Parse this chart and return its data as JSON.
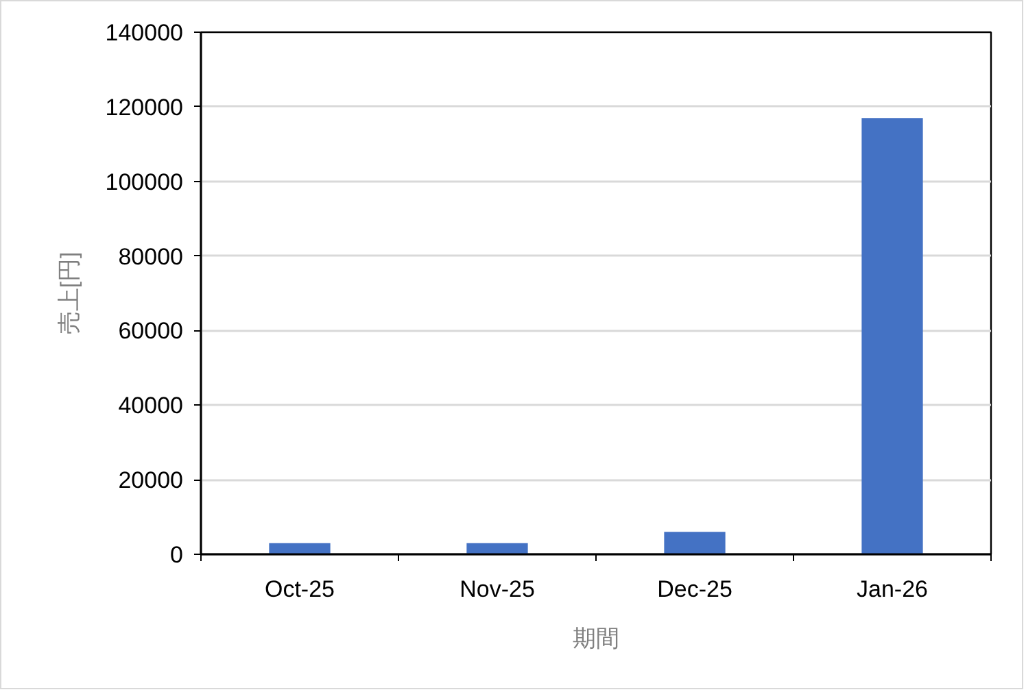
{
  "chart_data": {
    "type": "bar",
    "xlabel": "期間",
    "ylabel": "売上[円]",
    "categories": [
      "Oct-25",
      "Nov-25",
      "Dec-25",
      "Jan-26"
    ],
    "values": [
      3000,
      3000,
      6000,
      117000
    ],
    "color": "#4472c4",
    "ylim": [
      0,
      140000
    ],
    "yticks": [
      0,
      20000,
      40000,
      60000,
      80000,
      100000,
      120000,
      140000
    ],
    "grid": "y"
  }
}
